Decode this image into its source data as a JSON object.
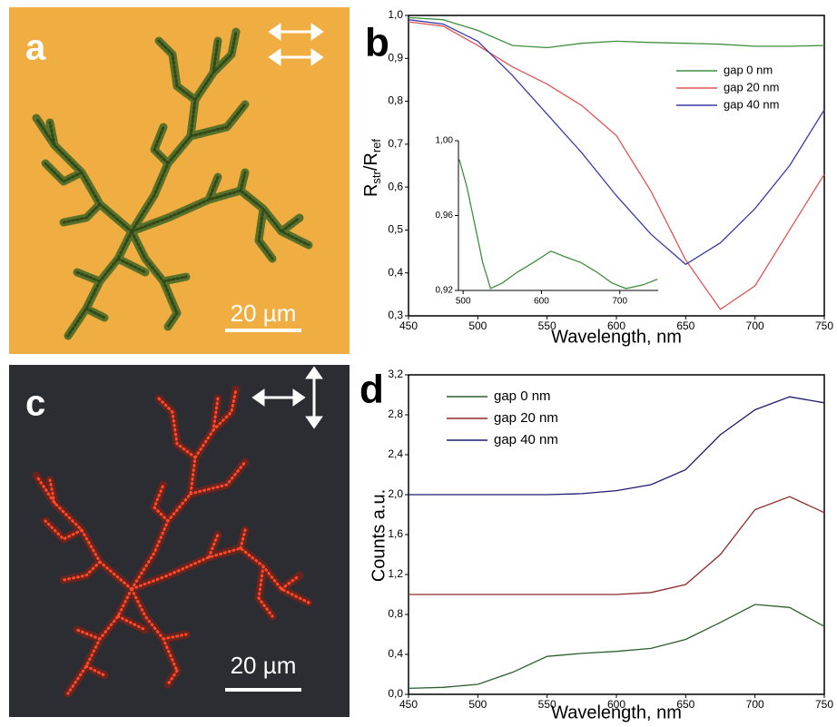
{
  "images": [
    {
      "label": "a",
      "scale_bar": "20 µm"
    },
    {
      "label": "c",
      "scale_bar": "20 µm"
    }
  ],
  "chart_data": [
    {
      "type": "line",
      "panel_label": "b",
      "xlabel": "Wavelength, nm",
      "ylabel_parts": [
        "R",
        "str",
        "/R",
        "ref"
      ],
      "x": [
        450,
        475,
        500,
        525,
        550,
        575,
        600,
        625,
        650,
        675,
        700,
        725,
        750
      ],
      "series": [
        {
          "name": "gap 0 nm",
          "color": "#3f8f3f",
          "values": [
            0.995,
            0.99,
            0.965,
            0.93,
            0.925,
            0.935,
            0.94,
            0.937,
            0.935,
            0.933,
            0.928,
            0.928,
            0.93
          ]
        },
        {
          "name": "gap 20 nm",
          "color": "#e05555",
          "values": [
            0.985,
            0.975,
            0.93,
            0.88,
            0.84,
            0.79,
            0.72,
            0.59,
            0.43,
            0.315,
            0.37,
            0.5,
            0.63
          ]
        },
        {
          "name": "gap 40 nm",
          "color": "#3a3aa8",
          "values": [
            0.99,
            0.98,
            0.94,
            0.86,
            0.77,
            0.68,
            0.58,
            0.49,
            0.42,
            0.47,
            0.55,
            0.65,
            0.78
          ]
        }
      ],
      "xlim": [
        450,
        750
      ],
      "xticks": [
        450,
        500,
        550,
        600,
        650,
        700,
        750
      ],
      "ylim": [
        0.3,
        1.0
      ],
      "yticks": [
        {
          "value": 0.3,
          "label": "0,3"
        },
        {
          "value": 0.4,
          "label": "0,4"
        },
        {
          "value": 0.5,
          "label": "0,5"
        },
        {
          "value": 0.6,
          "label": "0,6"
        },
        {
          "value": 0.7,
          "label": "0,7"
        },
        {
          "value": 0.8,
          "label": "0,8"
        },
        {
          "value": 0.9,
          "label": "0,9"
        },
        {
          "value": 1.0,
          "label": "1,0"
        }
      ],
      "legend": "upper right"
    },
    {
      "type": "line",
      "x": [
        495,
        505,
        515,
        525,
        535,
        550,
        570,
        590,
        612,
        630,
        650,
        670,
        690,
        708,
        730,
        748
      ],
      "series": [
        {
          "color": "#3f8f3f",
          "values": [
            0.99,
            0.975,
            0.955,
            0.935,
            0.921,
            0.924,
            0.93,
            0.935,
            0.941,
            0.938,
            0.935,
            0.93,
            0.924,
            0.921,
            0.923,
            0.926
          ]
        }
      ],
      "xlim": [
        494,
        749
      ],
      "xticks": [
        500,
        600,
        700
      ],
      "ylim": [
        0.92,
        1.0
      ],
      "yticks": [
        {
          "value": 0.92,
          "label": "0,92"
        },
        {
          "value": 0.96,
          "label": "0,96"
        },
        {
          "value": 1.0,
          "label": "1,00"
        }
      ]
    },
    {
      "type": "line",
      "panel_label": "d",
      "xlabel": "Wavelength, nm",
      "ylabel": "Counts a.u.",
      "x": [
        450,
        475,
        500,
        525,
        550,
        575,
        600,
        625,
        650,
        675,
        700,
        725,
        750
      ],
      "series": [
        {
          "name": "gap 0 nm",
          "color": "#2e5e2e",
          "values": [
            0.06,
            0.07,
            0.1,
            0.22,
            0.38,
            0.41,
            0.43,
            0.46,
            0.55,
            0.72,
            0.9,
            0.87,
            0.68
          ]
        },
        {
          "name": "gap 20 nm",
          "color": "#8e2a2a",
          "values": [
            1.0,
            1.0,
            1.0,
            1.0,
            1.0,
            1.0,
            1.0,
            1.02,
            1.1,
            1.4,
            1.85,
            1.98,
            1.82
          ]
        },
        {
          "name": "gap 40 nm",
          "color": "#1c1c70",
          "values": [
            2.0,
            2.0,
            2.0,
            2.0,
            2.0,
            2.01,
            2.04,
            2.1,
            2.25,
            2.6,
            2.85,
            2.98,
            2.92
          ]
        }
      ],
      "xlim": [
        450,
        750
      ],
      "xticks": [
        450,
        500,
        550,
        600,
        650,
        700,
        750
      ],
      "ylim": [
        0.0,
        3.2
      ],
      "yticks": [
        {
          "value": 0.0,
          "label": "0,0"
        },
        {
          "value": 0.4,
          "label": "0,4"
        },
        {
          "value": 0.8,
          "label": "0,8"
        },
        {
          "value": 1.2,
          "label": "1,2"
        },
        {
          "value": 1.6,
          "label": "1,6"
        },
        {
          "value": 2.0,
          "label": "2,0"
        },
        {
          "value": 2.4,
          "label": "2,4"
        },
        {
          "value": 2.8,
          "label": "2,8"
        },
        {
          "value": 3.2,
          "label": "3,2"
        }
      ],
      "legend": "upper left"
    }
  ]
}
